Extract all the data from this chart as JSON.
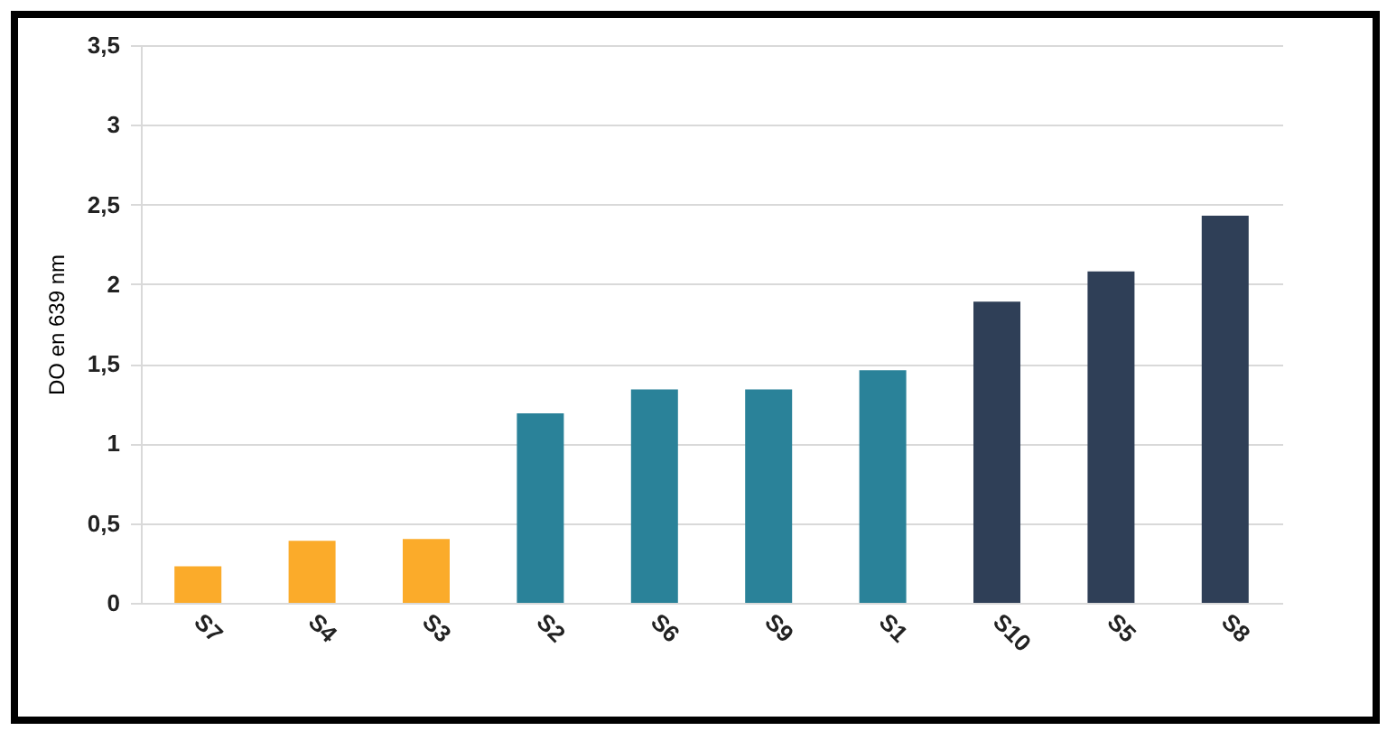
{
  "chart_data": {
    "type": "bar",
    "ylabel": "DO en 639 nm",
    "categories": [
      "S7",
      "S4",
      "S3",
      "S2",
      "S6",
      "S9",
      "S1",
      "S10",
      "S5",
      "S8"
    ],
    "values": [
      0.23,
      0.39,
      0.4,
      1.19,
      1.34,
      1.34,
      1.46,
      1.89,
      2.08,
      2.43
    ],
    "colors": [
      "#fbab2a",
      "#fbab2a",
      "#fbab2a",
      "#2a8299",
      "#2a8299",
      "#2a8299",
      "#2a8299",
      "#2f3f57",
      "#2f3f57",
      "#2f3f57"
    ],
    "ylim": [
      0,
      3.5
    ],
    "yticks": [
      0,
      {
        "value": 0.5,
        "label": "0,5"
      },
      1,
      {
        "value": 1.5,
        "label": "1,5"
      },
      2,
      {
        "value": 2.5,
        "label": "2,5"
      },
      3,
      {
        "value": 3.5,
        "label": "3,5"
      }
    ],
    "grid": "y"
  }
}
